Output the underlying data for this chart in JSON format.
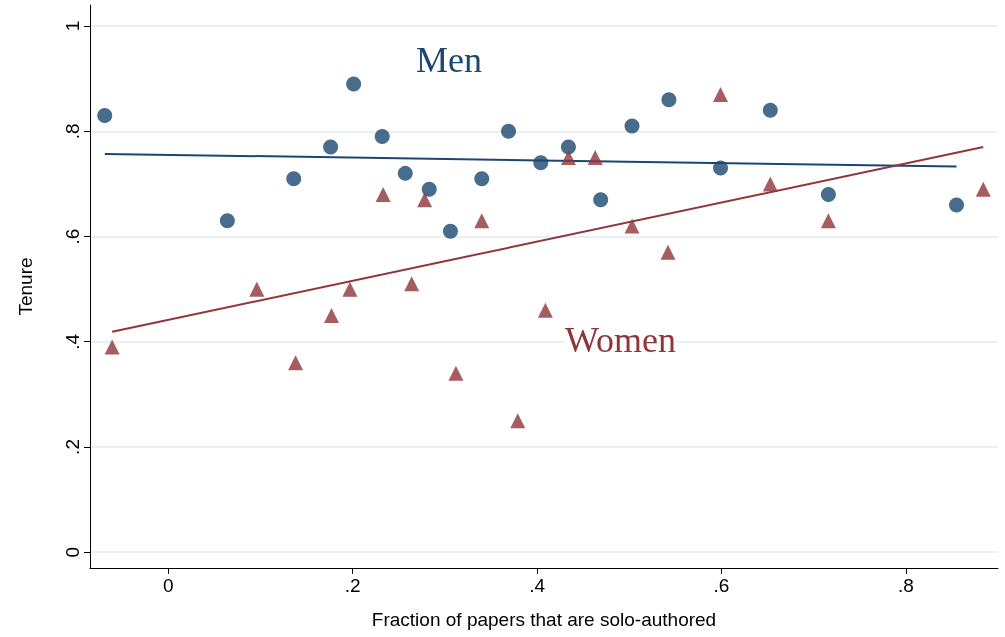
{
  "chart_data": {
    "type": "scatter",
    "xlabel": "Fraction of papers that are solo-authored",
    "ylabel": "Tenure",
    "series": [
      {
        "name": "Men",
        "color": "#1a476f",
        "marker": "circle",
        "x": [
          -0.069,
          0.064,
          0.136,
          0.176,
          0.201,
          0.232,
          0.257,
          0.283,
          0.306,
          0.34,
          0.369,
          0.404,
          0.434,
          0.469,
          0.503,
          0.543,
          0.599,
          0.653,
          0.716,
          0.855
        ],
        "values": [
          0.83,
          0.63,
          0.71,
          0.77,
          0.89,
          0.79,
          0.72,
          0.69,
          0.61,
          0.71,
          0.8,
          0.74,
          0.77,
          0.67,
          0.81,
          0.86,
          0.73,
          0.84,
          0.68,
          0.66
        ]
      },
      {
        "name": "Women",
        "color": "#90353b",
        "marker": "triangle",
        "x": [
          -0.061,
          0.096,
          0.138,
          0.177,
          0.197,
          0.233,
          0.264,
          0.278,
          0.312,
          0.34,
          0.379,
          0.409,
          0.434,
          0.463,
          0.503,
          0.542,
          0.599,
          0.653,
          0.716,
          0.884
        ],
        "values": [
          0.39,
          0.5,
          0.36,
          0.45,
          0.5,
          0.68,
          0.51,
          0.67,
          0.34,
          0.63,
          0.25,
          0.46,
          0.75,
          0.75,
          0.62,
          0.57,
          0.87,
          0.7,
          0.63,
          0.69
        ]
      },
      {
        "type": "line",
        "color": "#1a476f",
        "x": [
          -0.069,
          0.855
        ],
        "values": [
          0.757,
          0.733
        ]
      },
      {
        "type": "line",
        "color": "#90353b",
        "x": [
          -0.061,
          0.884
        ],
        "values": [
          0.419,
          0.77
        ]
      }
    ],
    "xlim": [
      -0.085,
      0.9
    ],
    "ylim": [
      -0.03,
      1.04
    ],
    "xticks": [
      0,
      {
        "value": 0.2,
        "label": ".2"
      },
      {
        "value": 0.4,
        "label": ".4"
      },
      {
        "value": 0.6,
        "label": ".6"
      },
      {
        "value": 0.8,
        "label": ".8"
      }
    ],
    "yticks": [
      0,
      {
        "value": 0.2,
        "label": ".2"
      },
      {
        "value": 0.4,
        "label": ".4"
      },
      {
        "value": 0.6,
        "label": ".6"
      },
      {
        "value": 0.8,
        "label": ".8"
      },
      1
    ],
    "grid": "y",
    "legend": false,
    "line_style": "solid"
  }
}
